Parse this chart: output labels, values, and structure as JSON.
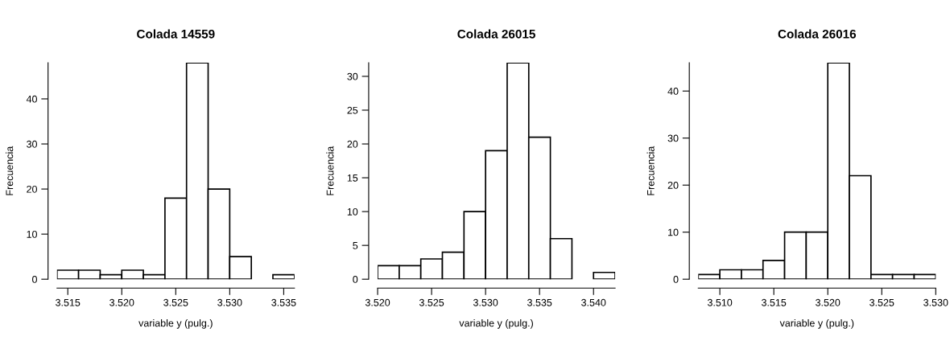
{
  "chart_data": [
    {
      "type": "histogram",
      "title": "Colada 14559",
      "xlabel": "variable y (pulg.)",
      "ylabel": "Frecuencia",
      "color": "#ffffff",
      "bins": [
        3.514,
        3.516,
        3.518,
        3.52,
        3.522,
        3.524,
        3.526,
        3.528,
        3.53,
        3.532,
        3.534,
        3.536
      ],
      "values": [
        2,
        2,
        1,
        2,
        1,
        18,
        48,
        20,
        5,
        0,
        1
      ],
      "xlim": [
        3.514,
        3.536
      ],
      "xticks": [
        3.515,
        {
          "value": 3.52,
          "label": "3.520"
        },
        3.525,
        {
          "value": 3.53,
          "label": "3.530"
        },
        3.535
      ],
      "ylim": [
        0,
        48
      ],
      "yticks": [
        0,
        10,
        20,
        30,
        40
      ],
      "grid": false
    },
    {
      "type": "histogram",
      "title": "Colada 26015",
      "xlabel": "variable y (pulg.)",
      "ylabel": "Frecuencia",
      "color": "#ffffff",
      "bins": [
        3.52,
        3.522,
        3.524,
        3.526,
        3.528,
        3.53,
        3.532,
        3.534,
        3.536,
        3.538,
        3.54,
        3.542
      ],
      "values": [
        2,
        2,
        3,
        4,
        10,
        19,
        32,
        21,
        6,
        0,
        1
      ],
      "xlim": [
        3.52,
        3.542
      ],
      "xticks": [
        {
          "value": 3.52,
          "label": "3.520"
        },
        3.525,
        {
          "value": 3.53,
          "label": "3.530"
        },
        3.535,
        {
          "value": 3.54,
          "label": "3.540"
        }
      ],
      "ylim": [
        0,
        32
      ],
      "yticks": [
        0,
        5,
        10,
        15,
        20,
        25,
        30
      ],
      "grid": false
    },
    {
      "type": "histogram",
      "title": "Colada 26016",
      "xlabel": "variable y (pulg.)",
      "ylabel": "Frecuencia",
      "color": "#ffffff",
      "bins": [
        3.508,
        3.51,
        3.512,
        3.514,
        3.516,
        3.518,
        3.52,
        3.522,
        3.524,
        3.526,
        3.528,
        3.53
      ],
      "values": [
        1,
        2,
        2,
        4,
        10,
        10,
        46,
        22,
        1,
        1,
        1
      ],
      "xlim": [
        3.508,
        3.53
      ],
      "xticks": [
        {
          "value": 3.51,
          "label": "3.510"
        },
        3.515,
        {
          "value": 3.52,
          "label": "3.520"
        },
        3.525,
        {
          "value": 3.53,
          "label": "3.530"
        }
      ],
      "ylim": [
        0,
        46
      ],
      "yticks": [
        0,
        10,
        20,
        30,
        40
      ],
      "grid": false
    }
  ]
}
